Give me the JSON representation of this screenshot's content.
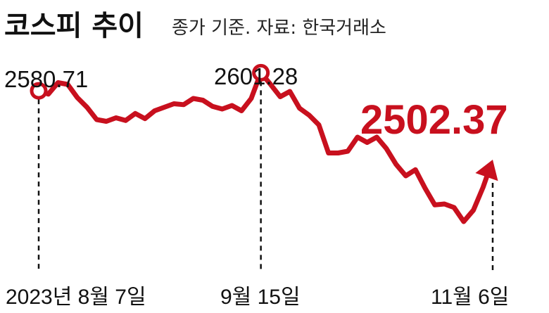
{
  "header": {
    "title": "코스피 추이",
    "subtitle": "종가 기준. 자료: 한국거래소"
  },
  "colors": {
    "line": "#c8101e",
    "text": "#111111",
    "guide": "#111111"
  },
  "chart_data": {
    "type": "line",
    "title": "코스피 추이",
    "subtitle": "종가 기준. 자료: 한국거래소",
    "xlabel": "",
    "ylabel": "",
    "ylim": [
      2380,
      2620
    ],
    "grid": false,
    "series": [
      {
        "values": [
          2580.71,
          2577,
          2590,
          2588,
          2573,
          2562,
          2548,
          2546,
          2550,
          2547,
          2555,
          2549,
          2558,
          2562,
          2566,
          2565,
          2572,
          2570,
          2563,
          2560,
          2564,
          2558,
          2572,
          2601.28,
          2588,
          2574,
          2580,
          2561,
          2553,
          2542,
          2510,
          2510,
          2512,
          2528,
          2522,
          2528,
          2515,
          2497,
          2484,
          2491,
          2470,
          2451,
          2452,
          2448,
          2432,
          2445,
          2471,
          2502.37
        ]
      }
    ],
    "annotations": {
      "start": {
        "value": "2580.71",
        "date": "2023년 8월 7일"
      },
      "peak": {
        "value": "2601.28",
        "date": "9월 15일"
      },
      "end": {
        "value": "2502.37",
        "date": "11월 6일"
      }
    }
  }
}
